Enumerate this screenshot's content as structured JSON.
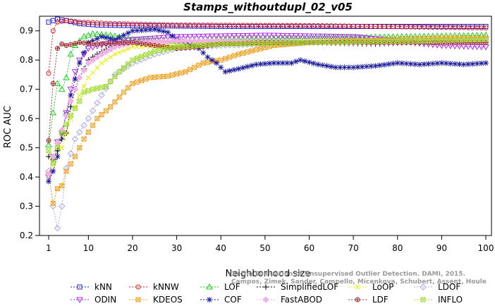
{
  "chart_data": {
    "type": "line",
    "title": "Stamps_withoutdupl_02_v05",
    "xlabel": "Neighborhood size",
    "ylabel": "ROC AUC",
    "xlim": [
      1,
      100
    ],
    "ylim": [
      0.2,
      0.95
    ],
    "xticks": [
      1,
      10,
      20,
      30,
      40,
      50,
      60,
      70,
      80,
      90,
      100
    ],
    "yticks": [
      0.2,
      0.3,
      0.4,
      0.5,
      0.6,
      0.7,
      0.8,
      0.9
    ],
    "grid": false,
    "legend_placement": "bottom",
    "watermark": {
      "line1": "Campos, Zimek, Sander, Campello, Micenkova, Schubert, Assent, Houle",
      "line2": "On the Evaluation of Unsupervised Outlier Detection. DAMI, 2015."
    },
    "series": [
      {
        "name": "kNN",
        "color": "#1f1fd6",
        "marker": "square",
        "points": [
          [
            1,
            0.93
          ],
          [
            2,
            0.935
          ],
          [
            3,
            0.94
          ],
          [
            5,
            0.935
          ],
          [
            8,
            0.925
          ],
          [
            12,
            0.92
          ],
          [
            20,
            0.918
          ],
          [
            40,
            0.915
          ],
          [
            70,
            0.915
          ],
          [
            100,
            0.915
          ]
        ]
      },
      {
        "name": "kNNW",
        "color": "#e02020",
        "marker": "circle",
        "points": [
          [
            1,
            0.755
          ],
          [
            2,
            0.9
          ],
          [
            3,
            0.93
          ],
          [
            5,
            0.935
          ],
          [
            8,
            0.93
          ],
          [
            15,
            0.925
          ],
          [
            30,
            0.92
          ],
          [
            60,
            0.918
          ],
          [
            100,
            0.91
          ]
        ]
      },
      {
        "name": "LOF",
        "color": "#22cc22",
        "marker": "triangle-up",
        "points": [
          [
            1,
            0.51
          ],
          [
            2,
            0.62
          ],
          [
            3,
            0.72
          ],
          [
            4,
            0.7
          ],
          [
            5,
            0.74
          ],
          [
            6,
            0.82
          ],
          [
            7,
            0.85
          ],
          [
            9,
            0.88
          ],
          [
            11,
            0.89
          ],
          [
            15,
            0.885
          ],
          [
            20,
            0.87
          ],
          [
            30,
            0.865
          ],
          [
            40,
            0.87
          ],
          [
            60,
            0.875
          ],
          [
            80,
            0.88
          ],
          [
            100,
            0.885
          ]
        ]
      },
      {
        "name": "SimplifiedLOF",
        "color": "#000000",
        "marker": "plus",
        "points": [
          [
            1,
            0.47
          ],
          [
            2,
            0.46
          ],
          [
            3,
            0.49
          ],
          [
            4,
            0.53
          ],
          [
            5,
            0.55
          ],
          [
            6,
            0.64
          ],
          [
            7,
            0.7
          ],
          [
            8,
            0.74
          ],
          [
            9,
            0.77
          ],
          [
            10,
            0.8
          ],
          [
            12,
            0.82
          ],
          [
            15,
            0.845
          ],
          [
            20,
            0.86
          ],
          [
            30,
            0.865
          ],
          [
            50,
            0.865
          ],
          [
            60,
            0.86
          ],
          [
            75,
            0.855
          ],
          [
            90,
            0.865
          ],
          [
            100,
            0.86
          ]
        ]
      },
      {
        "name": "LoOP",
        "color": "#eaea00",
        "marker": "x",
        "points": [
          [
            1,
            0.41
          ],
          [
            2,
            0.44
          ],
          [
            4,
            0.5
          ],
          [
            6,
            0.6
          ],
          [
            8,
            0.68
          ],
          [
            10,
            0.74
          ],
          [
            13,
            0.79
          ],
          [
            16,
            0.82
          ],
          [
            20,
            0.845
          ],
          [
            30,
            0.85
          ],
          [
            50,
            0.86
          ],
          [
            75,
            0.87
          ],
          [
            100,
            0.875
          ]
        ]
      },
      {
        "name": "LDOF",
        "color": "#a8a8e8",
        "marker": "diamond",
        "points": [
          [
            1,
            0.42
          ],
          [
            2,
            0.3
          ],
          [
            3,
            0.225
          ],
          [
            4,
            0.3
          ],
          [
            5,
            0.43
          ],
          [
            7,
            0.53
          ],
          [
            10,
            0.6
          ],
          [
            13,
            0.68
          ],
          [
            16,
            0.75
          ],
          [
            20,
            0.79
          ],
          [
            25,
            0.82
          ],
          [
            30,
            0.84
          ],
          [
            40,
            0.85
          ],
          [
            60,
            0.86
          ],
          [
            80,
            0.865
          ],
          [
            100,
            0.87
          ]
        ]
      },
      {
        "name": "ODIN",
        "color": "#b22ee8",
        "marker": "triangle-down",
        "points": [
          [
            1,
            0.4
          ],
          [
            2,
            0.47
          ],
          [
            3,
            0.52
          ],
          [
            4,
            0.55
          ],
          [
            5,
            0.62
          ],
          [
            6,
            0.7
          ],
          [
            7,
            0.76
          ],
          [
            8,
            0.8
          ],
          [
            10,
            0.84
          ],
          [
            15,
            0.86
          ],
          [
            20,
            0.87
          ],
          [
            30,
            0.88
          ],
          [
            50,
            0.885
          ],
          [
            70,
            0.88
          ],
          [
            80,
            0.865
          ],
          [
            90,
            0.85
          ],
          [
            100,
            0.845
          ]
        ]
      },
      {
        "name": "KDEOS",
        "color": "#f0a020",
        "marker": "square-x",
        "points": [
          [
            1,
            0.41
          ],
          [
            2,
            0.31
          ],
          [
            3,
            0.36
          ],
          [
            4,
            0.37
          ],
          [
            5,
            0.42
          ],
          [
            7,
            0.47
          ],
          [
            9,
            0.53
          ],
          [
            12,
            0.6
          ],
          [
            15,
            0.64
          ],
          [
            18,
            0.69
          ],
          [
            20,
            0.72
          ],
          [
            24,
            0.74
          ],
          [
            28,
            0.745
          ],
          [
            32,
            0.76
          ],
          [
            36,
            0.79
          ],
          [
            40,
            0.8
          ],
          [
            44,
            0.82
          ],
          [
            48,
            0.835
          ],
          [
            52,
            0.85
          ],
          [
            60,
            0.86
          ],
          [
            70,
            0.865
          ],
          [
            80,
            0.87
          ],
          [
            90,
            0.875
          ],
          [
            100,
            0.875
          ]
        ]
      },
      {
        "name": "COF",
        "color": "#1a1a9e",
        "marker": "asterisk",
        "points": [
          [
            1,
            0.385
          ],
          [
            2,
            0.42
          ],
          [
            3,
            0.47
          ],
          [
            4,
            0.55
          ],
          [
            6,
            0.68
          ],
          [
            8,
            0.79
          ],
          [
            10,
            0.86
          ],
          [
            13,
            0.88
          ],
          [
            16,
            0.87
          ],
          [
            20,
            0.9
          ],
          [
            25,
            0.905
          ],
          [
            28,
            0.895
          ],
          [
            30,
            0.87
          ],
          [
            32,
            0.86
          ],
          [
            35,
            0.84
          ],
          [
            37,
            0.81
          ],
          [
            39,
            0.79
          ],
          [
            41,
            0.76
          ],
          [
            44,
            0.77
          ],
          [
            48,
            0.785
          ],
          [
            52,
            0.79
          ],
          [
            56,
            0.79
          ],
          [
            58,
            0.8
          ],
          [
            62,
            0.785
          ],
          [
            66,
            0.775
          ],
          [
            70,
            0.775
          ],
          [
            75,
            0.78
          ],
          [
            80,
            0.79
          ],
          [
            85,
            0.785
          ],
          [
            90,
            0.79
          ],
          [
            95,
            0.785
          ],
          [
            100,
            0.79
          ]
        ]
      },
      {
        "name": "FastABOD",
        "color": "#f2b0e8",
        "marker": "diamond-fill",
        "points": [
          [
            1,
            0.41
          ],
          [
            2,
            0.47
          ],
          [
            4,
            0.56
          ],
          [
            6,
            0.66
          ],
          [
            8,
            0.74
          ],
          [
            10,
            0.79
          ],
          [
            13,
            0.82
          ],
          [
            16,
            0.845
          ],
          [
            20,
            0.86
          ],
          [
            30,
            0.865
          ],
          [
            50,
            0.865
          ],
          [
            70,
            0.86
          ],
          [
            100,
            0.865
          ]
        ]
      },
      {
        "name": "LDF",
        "color": "#a03030",
        "marker": "circle-plus",
        "points": [
          [
            1,
            0.525
          ],
          [
            2,
            0.72
          ],
          [
            3,
            0.84
          ],
          [
            4,
            0.855
          ],
          [
            5,
            0.85
          ],
          [
            8,
            0.86
          ],
          [
            12,
            0.855
          ],
          [
            20,
            0.86
          ],
          [
            25,
            0.85
          ],
          [
            30,
            0.84
          ],
          [
            35,
            0.845
          ],
          [
            40,
            0.855
          ],
          [
            50,
            0.86
          ],
          [
            60,
            0.86
          ],
          [
            80,
            0.86
          ],
          [
            100,
            0.86
          ]
        ]
      },
      {
        "name": "INFLO",
        "color": "#9edc2a",
        "marker": "square-x",
        "points": [
          [
            1,
            0.49
          ],
          [
            2,
            0.45
          ],
          [
            3,
            0.5
          ],
          [
            4,
            0.55
          ],
          [
            6,
            0.61
          ],
          [
            8,
            0.66
          ],
          [
            9,
            0.69
          ],
          [
            11,
            0.7
          ],
          [
            14,
            0.71
          ],
          [
            17,
            0.76
          ],
          [
            20,
            0.8
          ],
          [
            25,
            0.83
          ],
          [
            30,
            0.845
          ],
          [
            40,
            0.855
          ],
          [
            60,
            0.86
          ],
          [
            80,
            0.865
          ],
          [
            100,
            0.87
          ]
        ]
      }
    ]
  }
}
